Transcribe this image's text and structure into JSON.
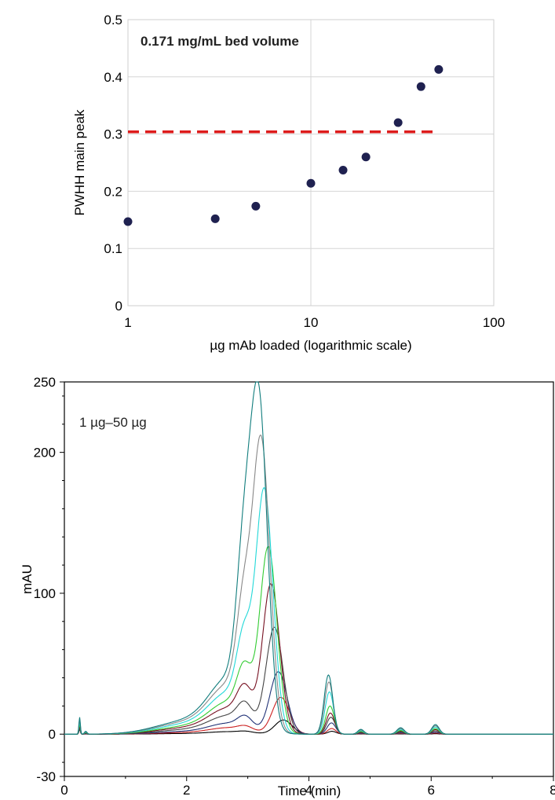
{
  "chart_data": [
    {
      "type": "scatter",
      "xscale": "log",
      "xlim": [
        1,
        100
      ],
      "ylim": [
        0,
        0.5
      ],
      "grid": true,
      "xticks": [
        "1",
        "10",
        "100"
      ],
      "yticks": [
        "0",
        "0.1",
        "0.2",
        "0.3",
        "0.4",
        "0.5"
      ],
      "xlabel": "µg mAb loaded (logarithmic scale)",
      "ylabel": "PWHH main peak",
      "annotation": "0.171 mg/mL bed volume",
      "point_color": "#1f2150",
      "points": [
        {
          "x": 1,
          "y": 0.147
        },
        {
          "x": 3,
          "y": 0.152
        },
        {
          "x": 5,
          "y": 0.174
        },
        {
          "x": 10,
          "y": 0.214
        },
        {
          "x": 15,
          "y": 0.237
        },
        {
          "x": 20,
          "y": 0.26
        },
        {
          "x": 30,
          "y": 0.32
        },
        {
          "x": 40,
          "y": 0.383
        },
        {
          "x": 50,
          "y": 0.413
        }
      ],
      "reference_line": {
        "y": 0.304,
        "x_from": 1,
        "x_to": 50,
        "color": "#dd1c1c",
        "style": "dashed"
      }
    },
    {
      "type": "line",
      "xlim": [
        0,
        8
      ],
      "ylim": [
        -30,
        250
      ],
      "grid": false,
      "xticks": [
        "0",
        "2",
        "4",
        "6",
        "8"
      ],
      "yticks": [
        "-30",
        "0",
        "100",
        "200",
        "250"
      ],
      "xlabel": "Time (min)",
      "ylabel": "mAU",
      "annotation": "1 µg–50 µg",
      "series": [
        {
          "color": "#000000",
          "main_peak": 10,
          "shoulder": 1,
          "second_peak": 2
        },
        {
          "color": "#cc2222",
          "main_peak": 26,
          "shoulder": 3,
          "second_peak": 4
        },
        {
          "color": "#223377",
          "main_peak": 44,
          "shoulder": 8,
          "second_peak": 8
        },
        {
          "color": "#444444",
          "main_peak": 75,
          "shoulder": 14,
          "second_peak": 12
        },
        {
          "color": "#771122",
          "main_peak": 105,
          "shoulder": 22,
          "second_peak": 15
        },
        {
          "color": "#33cc33",
          "main_peak": 130,
          "shoulder": 33,
          "second_peak": 20
        },
        {
          "color": "#22d8d8",
          "main_peak": 168,
          "shoulder": 49,
          "second_peak": 30
        },
        {
          "color": "#888888",
          "main_peak": 199,
          "shoulder": 66,
          "second_peak": 37
        },
        {
          "color": "#117d7d",
          "main_peak": 226,
          "shoulder": 90,
          "second_peak": 42
        }
      ]
    }
  ]
}
